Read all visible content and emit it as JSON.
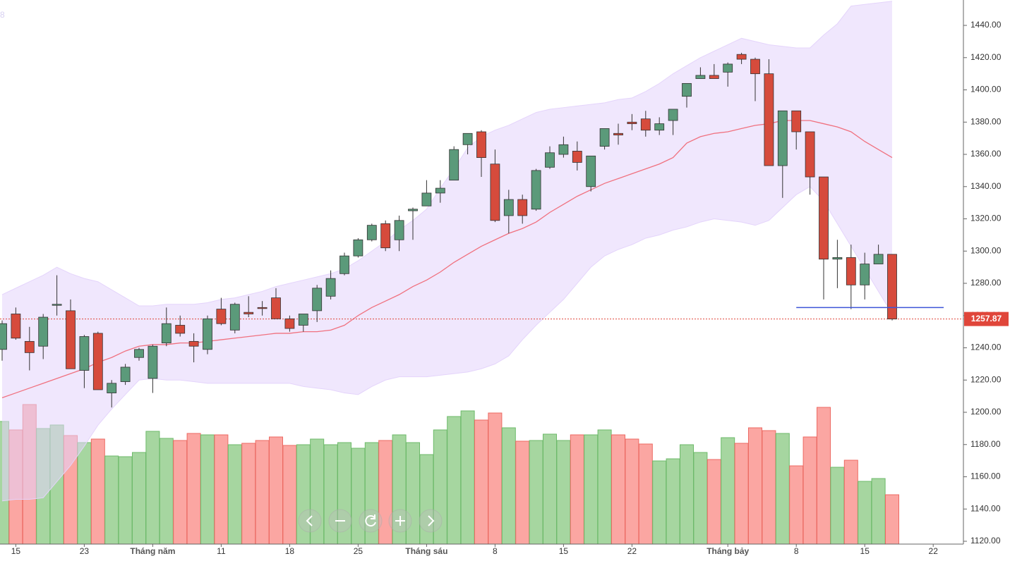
{
  "chart_data": {
    "type": "candlestick",
    "corner_label": "8",
    "categories": [
      null,
      "15",
      null,
      null,
      null,
      null,
      "23",
      null,
      null,
      null,
      null,
      "Tháng năm",
      null,
      null,
      null,
      null,
      "11",
      null,
      null,
      null,
      null,
      "18",
      null,
      null,
      null,
      null,
      "25",
      null,
      null,
      null,
      null,
      "Tháng sáu",
      null,
      null,
      null,
      null,
      "8",
      null,
      null,
      null,
      null,
      "15",
      null,
      null,
      null,
      null,
      "22",
      null,
      null,
      null,
      null,
      null,
      null,
      "Tháng bảy",
      null,
      null,
      null,
      null,
      "8",
      null,
      null,
      null,
      null,
      "15",
      null,
      null,
      null,
      null,
      "22"
    ],
    "open": [
      1239,
      1261,
      1244,
      1241,
      1267,
      1263,
      1226,
      1249,
      1212,
      1219,
      1234,
      1221,
      1243,
      1254,
      1244,
      1239,
      1264,
      1251,
      1262,
      1265,
      1271,
      1258,
      1254,
      1263,
      1272,
      1286,
      1297,
      1307,
      1317,
      1307,
      1325,
      1328,
      1336,
      1344,
      1366,
      1374,
      1354,
      1322,
      1332,
      1326,
      1352,
      1360,
      1362,
      1340,
      1365,
      1373,
      1380,
      1382,
      1375,
      1381,
      1396,
      1407,
      1409,
      1411,
      1422,
      1419,
      1410,
      1353,
      1387,
      1374,
      1346,
      1295,
      1296,
      1279,
      1292,
      1298,
      null,
      null,
      null
    ],
    "high": [
      1257,
      1265,
      1253,
      1261,
      1285,
      1270,
      1248,
      1250,
      1220,
      1230,
      1240,
      1242,
      1265,
      1260,
      1249,
      1260,
      1271,
      1268,
      1272,
      1269,
      1277,
      1260,
      1261,
      1279,
      1288,
      1299,
      1308,
      1317,
      1319,
      1322,
      1327,
      1344,
      1344,
      1365,
      1373,
      1375,
      1363,
      1338,
      1335,
      1351,
      1365,
      1371,
      1368,
      1359,
      1376,
      1379,
      1385,
      1387,
      1383,
      1388,
      1404,
      1414,
      1416,
      1417,
      1423,
      1420,
      1419,
      1387,
      1387,
      1374,
      1346,
      1307,
      1304,
      1299,
      1304,
      1298,
      null,
      null,
      null
    ],
    "low": [
      1232,
      1245,
      1226,
      1233,
      1260,
      1227,
      1215,
      1214,
      1203,
      1217,
      1232,
      1212,
      1241,
      1247,
      1231,
      1236,
      1254,
      1249,
      1259,
      1260,
      1258,
      1250,
      1250,
      1256,
      1270,
      1285,
      1296,
      1306,
      1300,
      1300,
      1307,
      1328,
      1330,
      1344,
      1360,
      1346,
      1318,
      1311,
      1317,
      1325,
      1351,
      1358,
      1350,
      1337,
      1363,
      1366,
      1375,
      1371,
      1372,
      1372,
      1389,
      1407,
      1407,
      1402,
      1416,
      1393,
      1353,
      1333,
      1363,
      1335,
      1270,
      1277,
      1264,
      1270,
      1292,
      1257,
      null,
      null,
      null
    ],
    "close": [
      1255,
      1246,
      1237,
      1259,
      1267,
      1227,
      1247,
      1214,
      1218,
      1228,
      1239,
      1241,
      1255,
      1249,
      1241,
      1258,
      1255,
      1267,
      1261,
      1264.5,
      1258,
      1252,
      1261,
      1277,
      1283,
      1297,
      1307,
      1316,
      1302,
      1319,
      1326,
      1336,
      1339,
      1363,
      1373,
      1358,
      1319,
      1332,
      1322,
      1350,
      1361,
      1366,
      1355,
      1359,
      1376,
      1372,
      1379,
      1375,
      1379,
      1388,
      1404,
      1409,
      1407,
      1416,
      1419,
      1410,
      1353,
      1387,
      1374,
      1346,
      1295,
      1296,
      1279,
      1292,
      1298,
      1257.87,
      null,
      null,
      null
    ],
    "up_color": "#5b9a7a",
    "down_color": "#d64b3c",
    "volume": {
      "values": [
        174,
        162,
        198,
        164,
        169,
        154,
        144,
        149,
        125,
        124,
        130,
        160,
        150,
        147,
        157,
        155,
        155,
        141,
        143,
        147,
        152,
        140,
        141,
        149,
        141,
        144,
        136,
        144,
        147,
        155,
        144,
        127,
        162,
        181,
        189,
        176,
        186,
        165,
        146,
        147,
        156,
        147,
        155,
        155,
        162,
        155,
        149,
        142,
        118,
        121,
        141,
        130,
        120,
        151,
        143,
        165,
        161,
        157,
        111,
        152,
        194,
        109,
        119,
        89,
        93,
        70,
        null,
        null,
        null
      ],
      "vlim": [
        0,
        240
      ],
      "up_color": "#a6d6a0",
      "down_color": "#fba6a2"
    },
    "bands": {
      "color": "#e4d4fb",
      "upper": [
        1273,
        1277,
        1281,
        1285,
        1290,
        1286,
        1283,
        1281,
        1276,
        1271,
        1266,
        1266,
        1267,
        1267,
        1267,
        1268,
        1270,
        1271,
        1273,
        1275,
        1278,
        1280,
        1282,
        1284,
        1286,
        1289,
        1294,
        1300,
        1306,
        1313,
        1319,
        1326,
        1339,
        1351,
        1364,
        1371,
        1375,
        1378,
        1382,
        1386,
        1388,
        1389,
        1390,
        1391,
        1392,
        1394,
        1395,
        1399,
        1404,
        1410,
        1415,
        1420,
        1424,
        1428,
        1432,
        1430,
        1428,
        1427,
        1426,
        1426,
        1434,
        1441,
        1452,
        1453,
        1454,
        1455,
        null,
        null,
        null
      ],
      "lower": [
        1145,
        1146,
        1146,
        1147,
        1157,
        1167,
        1179,
        1192,
        1202,
        1211,
        1220,
        1221,
        1220,
        1220,
        1219,
        1218,
        1218,
        1218,
        1218,
        1218,
        1218,
        1218,
        1216,
        1215,
        1214,
        1212,
        1211,
        1216,
        1220,
        1222,
        1222,
        1222,
        1223,
        1224,
        1225,
        1227,
        1230,
        1235,
        1245,
        1254,
        1262,
        1270,
        1280,
        1290,
        1297,
        1301,
        1304,
        1308,
        1310,
        1313,
        1315,
        1318,
        1320,
        1319,
        1318,
        1316,
        1319,
        1327,
        1335,
        1340,
        1331,
        1317,
        1303,
        1289,
        1275,
        1261,
        null,
        null,
        null
      ]
    },
    "moving_average": {
      "color": "#f0717f",
      "values": [
        1209,
        1212,
        1215,
        1218,
        1221,
        1224,
        1227,
        1231,
        1234,
        1238,
        1241,
        1242,
        1242,
        1243,
        1243,
        1244,
        1245,
        1246,
        1247,
        1248,
        1249,
        1249,
        1250,
        1250,
        1251,
        1254,
        1260,
        1265,
        1269,
        1273,
        1278,
        1282,
        1287,
        1293,
        1298,
        1303,
        1307,
        1311,
        1314,
        1318,
        1324,
        1329,
        1334,
        1338,
        1342,
        1345,
        1348,
        1351,
        1354,
        1358,
        1367,
        1371,
        1373,
        1374,
        1376,
        1378,
        1379,
        1381,
        1381,
        1381,
        1379,
        1377,
        1374,
        1368,
        1363,
        1358,
        null,
        null,
        null
      ]
    },
    "support_line": {
      "value": 1265,
      "color": "#3d55d8"
    },
    "last_price": {
      "value": 1257.87,
      "color": "#e0463a"
    },
    "ylim": [
      1118.25,
      1455.75
    ],
    "yticks": [
      {
        "value": 1120,
        "label": "1120.00"
      },
      {
        "value": 1140,
        "label": "1140.00"
      },
      {
        "value": 1160,
        "label": "1160.00"
      },
      {
        "value": 1180,
        "label": "1180.00"
      },
      {
        "value": 1200,
        "label": "1200.00"
      },
      {
        "value": 1220,
        "label": "1220.00"
      },
      {
        "value": 1240,
        "label": "1240.00"
      },
      {
        "value": 1260,
        "label": "1260.00"
      },
      {
        "value": 1280,
        "label": "1280.00"
      },
      {
        "value": 1300,
        "label": "1300.00"
      },
      {
        "value": 1320,
        "label": "1320.00"
      },
      {
        "value": 1340,
        "label": "1340.00"
      },
      {
        "value": 1360,
        "label": "1360.00"
      },
      {
        "value": 1380,
        "label": "1380.00"
      },
      {
        "value": 1400,
        "label": "1400.00"
      },
      {
        "value": 1420,
        "label": "1420.00"
      },
      {
        "value": 1440,
        "label": "1440.00"
      }
    ]
  }
}
